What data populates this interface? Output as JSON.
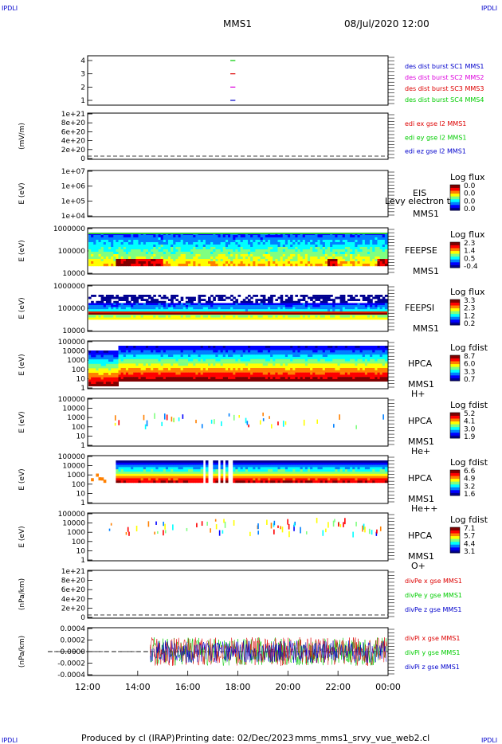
{
  "header": {
    "corner_left": "IPDLI",
    "corner_right": "IPDLI",
    "title": "MMS1",
    "date": "08/Jul/2020 12:00"
  },
  "footer": {
    "produced_by": "Produced by cl (IRAP)",
    "printing_date": "Printing date: 02/Dec/2023",
    "filename": "mms_mms1_srvy_vue_web2.cl",
    "corner_left": "IPDLI",
    "corner_right": "IPDLI"
  },
  "colors": {
    "blue": "#0000cc",
    "magenta": "#dd00dd",
    "red": "#dd0000",
    "green": "#00cc00",
    "colorbar": [
      "#000090",
      "#0000ff",
      "#0080ff",
      "#00ffff",
      "#80ff80",
      "#ffff00",
      "#ff8000",
      "#ff0000",
      "#800000"
    ]
  },
  "chart_data": [
    {
      "type": "line",
      "title": "",
      "ylabel": "",
      "yticks": [
        "4",
        "3",
        "2",
        "1"
      ],
      "ylim": [
        0.5,
        4.5
      ],
      "x_ticks": [
        "12:00",
        "14:00",
        "16:00",
        "18:00",
        "20:00",
        "22:00",
        "00:00"
      ],
      "legend": [
        {
          "name": "des dist burst SC1 MMS1",
          "color": "#0000cc"
        },
        {
          "name": "des dist burst SC2 MMS2",
          "color": "#dd00dd"
        },
        {
          "name": "des dist burst SC3 MMS3",
          "color": "#dd0000"
        },
        {
          "name": "des dist burst SC4 MMS4",
          "color": "#00cc00"
        }
      ],
      "series": [
        {
          "name": "des dist burst SC4 MMS4",
          "y": 4,
          "x": [
            "17:42",
            "17:54"
          ],
          "color": "#00cc00"
        },
        {
          "name": "des dist burst SC3 MMS3",
          "y": 3,
          "x": [
            "17:42",
            "17:54"
          ],
          "color": "#dd0000"
        },
        {
          "name": "des dist burst SC2 MMS2",
          "y": 2,
          "x": [
            "17:42",
            "17:54"
          ],
          "color": "#dd00dd"
        },
        {
          "name": "des dist burst SC1 MMS1",
          "y": 1,
          "x": [
            "17:42",
            "17:54"
          ],
          "color": "#0000cc"
        }
      ]
    },
    {
      "type": "line",
      "title": "",
      "ylabel": "(mV/m)",
      "yticks": [
        "1e+21",
        "8e+20",
        "6e+20",
        "4e+20",
        "2e+20",
        "0"
      ],
      "ylim": [
        0,
        1e+21
      ],
      "legend": [
        {
          "name": "edi ex gse l2 MMS1",
          "color": "#dd0000"
        },
        {
          "name": "edi ey gse l2 MMS1",
          "color": "#00cc00"
        },
        {
          "name": "edi ez gse l2 MMS1",
          "color": "#0000cc"
        }
      ],
      "zero_line": 0
    },
    {
      "type": "heatmap",
      "title": "",
      "ylabel": "E (eV)",
      "yticks": [
        "1e+07",
        "1e+06",
        "1e+05",
        "1e+04"
      ],
      "ylim": [
        10000.0,
        10000000.0
      ],
      "yscale": "log",
      "labels": [
        "EIS",
        "MMS1",
        "Levy electron to"
      ],
      "colorbar": {
        "title": "Log flux",
        "ticks": [
          "0.0",
          "0.0",
          "0.0",
          "0.0"
        ]
      }
    },
    {
      "type": "heatmap",
      "title": "",
      "ylabel": "E (eV)",
      "yticks": [
        "1000000",
        "100000",
        "10000"
      ],
      "ylim": [
        10000.0,
        1000000.0
      ],
      "yscale": "log",
      "labels": [
        "FEEPSE",
        "MMS1"
      ],
      "colorbar": {
        "title": "Log flux",
        "ticks": [
          "2.3",
          "1.4",
          "0.5",
          "-0.4"
        ]
      }
    },
    {
      "type": "heatmap",
      "title": "",
      "ylabel": "E (eV)",
      "yticks": [
        "1000000",
        "100000",
        "10000"
      ],
      "ylim": [
        10000.0,
        1000000.0
      ],
      "yscale": "log",
      "labels": [
        "FEEPSI",
        "MMS1"
      ],
      "colorbar": {
        "title": "Log flux",
        "ticks": [
          "3.3",
          "2.3",
          "1.2",
          "0.2"
        ]
      }
    },
    {
      "type": "heatmap",
      "title": "",
      "ylabel": "E (eV)",
      "yticks": [
        "100000",
        "10000",
        "1000",
        "100",
        "10",
        "1"
      ],
      "ylim": [
        1,
        100000.0
      ],
      "yscale": "log",
      "labels": [
        "HPCA",
        "MMS1",
        "H+"
      ],
      "colorbar": {
        "title": "Log fdist",
        "ticks": [
          "8.7",
          "6.0",
          "3.3",
          "0.7"
        ]
      }
    },
    {
      "type": "heatmap",
      "title": "",
      "ylabel": "E (eV)",
      "yticks": [
        "100000",
        "10000",
        "1000",
        "100",
        "10",
        "1"
      ],
      "ylim": [
        1,
        100000.0
      ],
      "yscale": "log",
      "labels": [
        "HPCA",
        "MMS1",
        "He+"
      ],
      "colorbar": {
        "title": "Log fdist",
        "ticks": [
          "5.2",
          "4.1",
          "3.0",
          "1.9"
        ]
      }
    },
    {
      "type": "heatmap",
      "title": "",
      "ylabel": "E (eV)",
      "yticks": [
        "100000",
        "10000",
        "1000",
        "100",
        "10",
        "1"
      ],
      "ylim": [
        1,
        100000.0
      ],
      "yscale": "log",
      "labels": [
        "HPCA",
        "MMS1",
        "He++"
      ],
      "colorbar": {
        "title": "Log fdist",
        "ticks": [
          "6.6",
          "4.9",
          "3.2",
          "1.6"
        ]
      }
    },
    {
      "type": "heatmap",
      "title": "",
      "ylabel": "E (eV)",
      "yticks": [
        "100000",
        "10000",
        "1000",
        "100",
        "10",
        "1"
      ],
      "ylim": [
        1,
        100000.0
      ],
      "yscale": "log",
      "labels": [
        "HPCA",
        "MMS1",
        "O+"
      ],
      "colorbar": {
        "title": "Log fdist",
        "ticks": [
          "7.1",
          "5.7",
          "4.4",
          "3.1"
        ]
      }
    },
    {
      "type": "line",
      "title": "",
      "ylabel": "(nPa/km)",
      "yticks": [
        "1e+21",
        "8e+20",
        "6e+20",
        "4e+20",
        "2e+20",
        "0"
      ],
      "ylim": [
        0,
        1e+21
      ],
      "legend": [
        {
          "name": "divPe x gse MMS1",
          "color": "#dd0000"
        },
        {
          "name": "divPe y gse MMS1",
          "color": "#00cc00"
        },
        {
          "name": "divPe z gse MMS1",
          "color": "#0000cc"
        }
      ],
      "zero_line": 0
    },
    {
      "type": "line",
      "title": "",
      "ylabel": "(nPa/km)",
      "yticks": [
        "0.0004",
        "0.0002",
        "0.0000",
        "-0.0002",
        "-0.0004"
      ],
      "ylim": [
        -0.0005,
        0.0005
      ],
      "legend": [
        {
          "name": "divPi x gse MMS1",
          "color": "#dd0000"
        },
        {
          "name": "divPi y gse MMS1",
          "color": "#00cc00"
        },
        {
          "name": "divPi z gse MMS1",
          "color": "#0000cc"
        }
      ],
      "series_start": "14:30",
      "zero_line": 0
    }
  ]
}
